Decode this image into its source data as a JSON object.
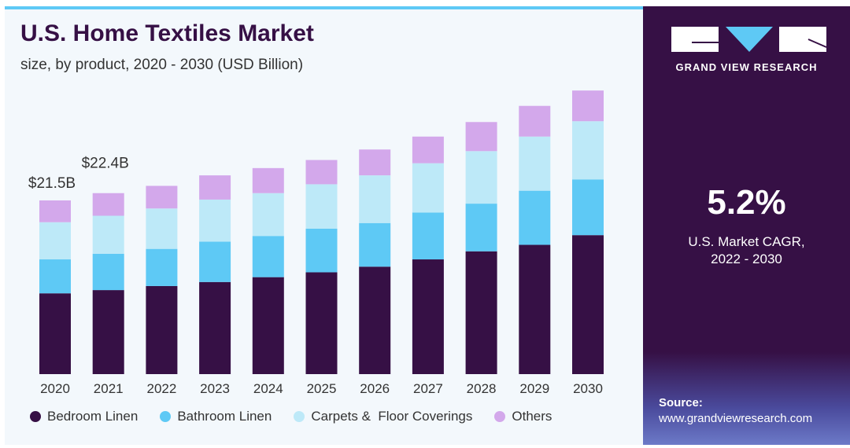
{
  "header": {
    "title": "U.S. Home Textiles Market",
    "subtitle": "size, by product, 2020 - 2030 (USD Billion)"
  },
  "brand": {
    "name": "GRAND VIEW RESEARCH"
  },
  "cagr": {
    "value": "5.2%",
    "label_line1": "U.S. Market CAGR,",
    "label_line2": "2022 - 2030"
  },
  "source": {
    "label": "Source:",
    "url": "www.grandviewresearch.com"
  },
  "colors": {
    "bedroom": "#361045",
    "bathroom": "#5ec9f5",
    "carpets": "#bde9f8",
    "others": "#d3a8eb",
    "panel": "#361045",
    "accent": "#5ec9f5"
  },
  "chart_data": {
    "type": "bar",
    "stacked": true,
    "categories": [
      "2020",
      "2021",
      "2022",
      "2023",
      "2024",
      "2025",
      "2026",
      "2027",
      "2028",
      "2029",
      "2030"
    ],
    "series": [
      {
        "name": "Bedroom Linen",
        "values": [
          10.0,
          10.4,
          10.9,
          11.4,
          12.0,
          12.6,
          13.3,
          14.2,
          15.2,
          16.0,
          17.2
        ]
      },
      {
        "name": "Bathroom Linen",
        "values": [
          4.2,
          4.5,
          4.6,
          5.0,
          5.1,
          5.4,
          5.4,
          5.8,
          5.9,
          6.7,
          6.9
        ]
      },
      {
        "name": "Carpets &  Floor Coverings",
        "values": [
          4.6,
          4.7,
          5.0,
          5.2,
          5.3,
          5.5,
          5.9,
          6.1,
          6.5,
          6.7,
          7.2
        ]
      },
      {
        "name": "Others",
        "values": [
          2.7,
          2.8,
          2.8,
          3.0,
          3.1,
          3.0,
          3.2,
          3.3,
          3.6,
          3.8,
          3.8
        ]
      }
    ],
    "data_labels": [
      {
        "category": "2020",
        "text": "$21.5B"
      },
      {
        "category": "2021",
        "text": "$22.4B"
      }
    ],
    "grid": false,
    "legend": "bottom"
  }
}
